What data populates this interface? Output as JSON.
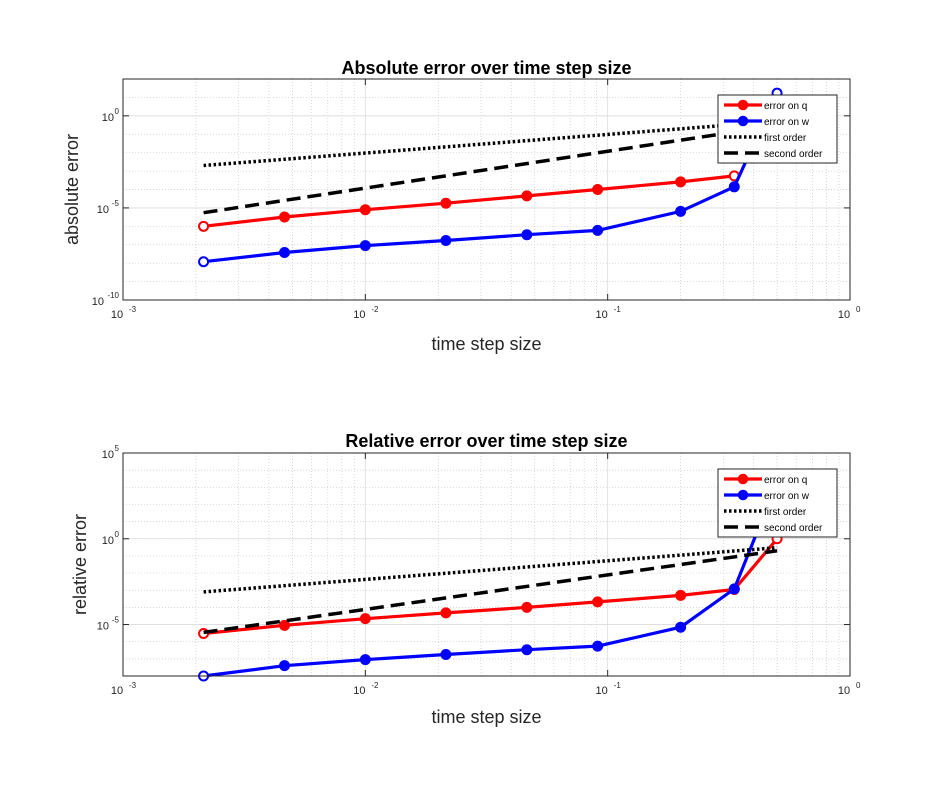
{
  "chart_data": [
    {
      "type": "line",
      "title": "Absolute error over time step size",
      "xlabel": "time step size",
      "ylabel": "absolute error",
      "xscale": "log",
      "yscale": "log",
      "xlim": [
        0.001,
        1
      ],
      "ylim": [
        1e-10,
        100
      ],
      "xticks": [
        {
          "value": 0.001,
          "base": "10",
          "exp": "-3"
        },
        {
          "value": 0.01,
          "base": "10",
          "exp": "-2"
        },
        {
          "value": 0.1,
          "base": "10",
          "exp": "-1"
        },
        {
          "value": 1,
          "base": "10",
          "exp": "0"
        }
      ],
      "yticks": [
        {
          "value": 1e-10,
          "base": "10",
          "exp": "-10"
        },
        {
          "value": 1e-05,
          "base": "10",
          "exp": "-5"
        },
        {
          "value": 1,
          "base": "10",
          "exp": "0"
        }
      ],
      "grid": true,
      "legend_position": "top-right",
      "series": [
        {
          "name": "error on q",
          "color": "#ff0000",
          "style": "solid-marker",
          "x": [
            0.00215,
            0.00464,
            0.01,
            0.0215,
            0.0464,
            0.0909,
            0.2,
            0.333
          ],
          "y": [
            1e-06,
            3.2e-06,
            8e-06,
            1.8e-05,
            4.5e-05,
            0.0001,
            0.00026,
            0.00055
          ]
        },
        {
          "name": "error on w",
          "color": "#0000ff",
          "style": "solid-marker",
          "x": [
            0.00215,
            0.00464,
            0.01,
            0.0215,
            0.0464,
            0.0909,
            0.2,
            0.333,
            0.5
          ],
          "y": [
            1.2e-08,
            3.8e-08,
            9e-08,
            1.7e-07,
            3.5e-07,
            6e-07,
            6.5e-06,
            0.00014,
            17
          ]
        },
        {
          "name": "first order",
          "color": "#000000",
          "style": "dotted",
          "x": [
            0.00215,
            0.5
          ],
          "y": [
            0.002,
            0.5
          ]
        },
        {
          "name": "second order",
          "color": "#000000",
          "style": "dashed",
          "x": [
            0.00215,
            0.5
          ],
          "y": [
            5.5e-06,
            0.3
          ]
        }
      ]
    },
    {
      "type": "line",
      "title": "Relative error over time step size",
      "xlabel": "time step size",
      "ylabel": "relative error",
      "xscale": "log",
      "yscale": "log",
      "xlim": [
        0.001,
        1
      ],
      "ylim": [
        1e-08,
        100000
      ],
      "xticks": [
        {
          "value": 0.001,
          "base": "10",
          "exp": "-3"
        },
        {
          "value": 0.01,
          "base": "10",
          "exp": "-2"
        },
        {
          "value": 0.1,
          "base": "10",
          "exp": "-1"
        },
        {
          "value": 1,
          "base": "10",
          "exp": "0"
        }
      ],
      "yticks": [
        {
          "value": 1e-05,
          "base": "10",
          "exp": "-5"
        },
        {
          "value": 1,
          "base": "10",
          "exp": "0"
        },
        {
          "value": 100000,
          "base": "10",
          "exp": "5"
        }
      ],
      "grid": true,
      "legend_position": "top-right",
      "series": [
        {
          "name": "error on q",
          "color": "#ff0000",
          "style": "solid-marker",
          "x": [
            0.00215,
            0.00464,
            0.01,
            0.0215,
            0.0464,
            0.0909,
            0.2,
            0.333,
            0.5
          ],
          "y": [
            3e-06,
            9e-06,
            2.2e-05,
            4.8e-05,
            0.0001,
            0.00021,
            0.0005,
            0.0011,
            1
          ]
        },
        {
          "name": "error on w",
          "color": "#0000ff",
          "style": "solid-marker",
          "x": [
            0.00215,
            0.00464,
            0.01,
            0.0215,
            0.0464,
            0.0909,
            0.2,
            0.333,
            0.5
          ],
          "y": [
            1e-08,
            4e-08,
            9e-08,
            1.8e-07,
            3.4e-07,
            5.5e-07,
            7e-06,
            0.0012,
            2000
          ]
        },
        {
          "name": "first order",
          "color": "#000000",
          "style": "dotted",
          "x": [
            0.00215,
            0.5
          ],
          "y": [
            0.0008,
            0.3
          ]
        },
        {
          "name": "second order",
          "color": "#000000",
          "style": "dashed",
          "x": [
            0.00215,
            0.5
          ],
          "y": [
            3.5e-06,
            0.2
          ]
        }
      ]
    }
  ]
}
